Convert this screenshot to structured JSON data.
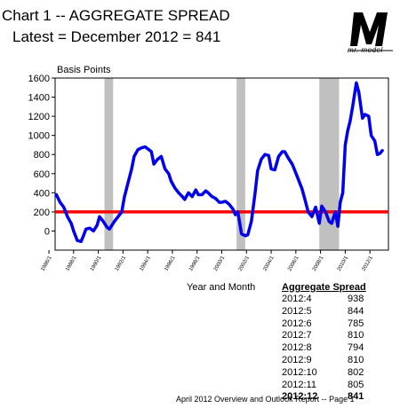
{
  "header": {
    "title": "Chart 1 -- AGGREGATE  SPREAD",
    "subtitle": "Latest = December 2012 = 841"
  },
  "logo": {
    "text": "mr. model"
  },
  "footer": {
    "text": "April  2012 Overview  and Outlook Report --  Page 1"
  },
  "table": {
    "header": "Aggregate Spread",
    "rows": [
      {
        "period": "2012:4",
        "value": "938"
      },
      {
        "period": "2012:5",
        "value": "844"
      },
      {
        "period": "2012:6",
        "value": "785"
      },
      {
        "period": "2012:7",
        "value": "810"
      },
      {
        "period": "2012:8",
        "value": "794"
      },
      {
        "period": "2012:9",
        "value": "810"
      },
      {
        "period": "2012:10",
        "value": "802"
      },
      {
        "period": "2012:11",
        "value": "805"
      },
      {
        "period": "2012:12",
        "value": "841"
      }
    ]
  },
  "chart_data": {
    "type": "line",
    "title": "Chart 1 -- AGGREGATE  SPREAD",
    "ylabel": "Basis Points",
    "xlabel": "Year and Month",
    "ylim": [
      -200,
      1600
    ],
    "xlim": [
      1986.5,
      2013.5
    ],
    "yticks": [
      0,
      200,
      400,
      600,
      800,
      1000,
      1200,
      1400,
      1600
    ],
    "xtick_labels": [
      "1986/1",
      "1988/1",
      "1990/1",
      "1992/1",
      "1994/1",
      "1996/1",
      "1998/1",
      "2000/1",
      "2002/1",
      "2004/1",
      "2006/1",
      "2008/1",
      "2010/1",
      "2012/1"
    ],
    "xtick_values": [
      1986,
      1988,
      1990,
      1992,
      1994,
      1996,
      1998,
      2000,
      2002,
      2004,
      2006,
      2008,
      2010,
      2012
    ],
    "recessions": [
      [
        1990.5,
        1991.2
      ],
      [
        2001.2,
        2001.9
      ],
      [
        2007.9,
        2009.5
      ]
    ],
    "reference_line": {
      "y": 200,
      "color": "#ff0000"
    },
    "colors": {
      "series": "#0000ee",
      "recession": "#c0c0c0",
      "reference": "#ff0000"
    },
    "series": [
      {
        "x": [
          1986.6,
          1986.9,
          1987.2,
          1987.5,
          1987.8,
          1988.0,
          1988.3,
          1988.6,
          1988.8,
          1989.0,
          1989.3,
          1989.6,
          1989.9,
          1990.1,
          1990.4,
          1990.7,
          1990.9,
          1991.1,
          1991.3,
          1991.6,
          1991.9,
          1992.1,
          1992.4,
          1992.7,
          1992.9,
          1993.2,
          1993.5,
          1993.8,
          1994.0,
          1994.3,
          1994.5,
          1994.8,
          1995.1,
          1995.4,
          1995.7,
          1995.9,
          1996.2,
          1996.5,
          1996.8,
          1997.0,
          1997.3,
          1997.6,
          1997.9,
          1998.1,
          1998.4,
          1998.7,
          1998.9,
          1999.2,
          1999.5,
          1999.8,
          2000.0,
          2000.3,
          2000.6,
          2000.9,
          2001.1,
          2001.3,
          2001.6,
          2001.9,
          2002.1,
          2002.4,
          2002.7,
          2002.9,
          2003.2,
          2003.5,
          2003.8,
          2004.0,
          2004.3,
          2004.6,
          2004.9,
          2005.1,
          2005.4,
          2005.7,
          2005.9,
          2006.2,
          2006.5,
          2006.8,
          2007.0,
          2007.3,
          2007.6,
          2007.9,
          2008.1,
          2008.4,
          2008.7,
          2008.9,
          2009.2,
          2009.4,
          2009.6,
          2009.8,
          2010.0,
          2010.2,
          2010.4,
          2010.6,
          2010.9,
          2011.1,
          2011.4,
          2011.6,
          2011.9,
          2012.1,
          2012.4,
          2012.6,
          2012.8,
          2013.0
        ],
        "y": [
          380,
          300,
          250,
          150,
          80,
          0,
          -100,
          -110,
          -50,
          20,
          30,
          0,
          60,
          150,
          100,
          40,
          20,
          60,
          100,
          150,
          200,
          350,
          500,
          650,
          780,
          850,
          870,
          880,
          860,
          830,
          700,
          750,
          780,
          650,
          600,
          520,
          450,
          400,
          360,
          330,
          400,
          360,
          430,
          380,
          380,
          420,
          400,
          360,
          340,
          300,
          300,
          310,
          280,
          230,
          170,
          200,
          -30,
          -50,
          -40,
          100,
          400,
          630,
          750,
          800,
          790,
          650,
          640,
          780,
          830,
          830,
          760,
          700,
          640,
          540,
          440,
          300,
          200,
          150,
          250,
          80,
          260,
          200,
          100,
          80,
          200,
          50,
          300,
          400,
          900,
          1050,
          1150,
          1300,
          1550,
          1450,
          1180,
          1220,
          1200,
          1000,
          940,
          800,
          810,
          841
        ]
      }
    ]
  }
}
